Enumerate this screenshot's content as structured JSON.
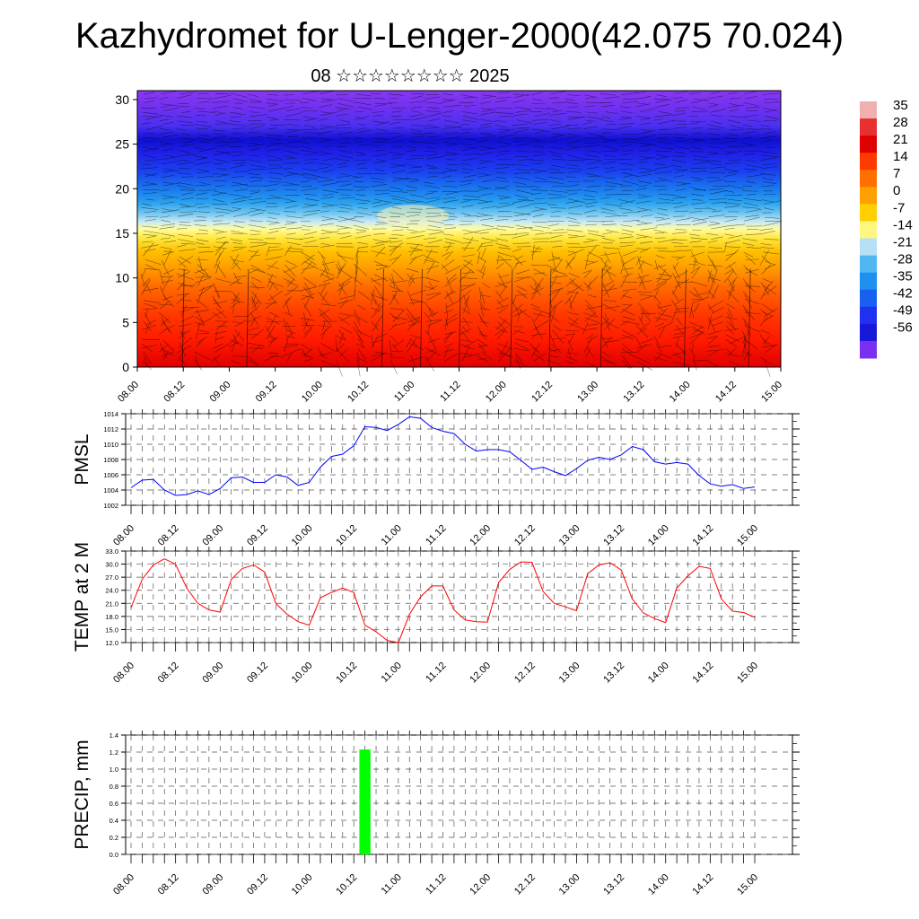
{
  "title": "Kazhydromet for U-Lenger-2000(42.075 70.024)",
  "subtitle": "08 ☆☆☆☆☆☆☆☆ 2025",
  "time_ticks": [
    "08.00",
    "08.12",
    "09.00",
    "09.12",
    "10.00",
    "10.12",
    "11.00",
    "11.12",
    "12.00",
    "12.12",
    "13.00",
    "13.12",
    "14.00",
    "14.12",
    "15.00"
  ],
  "colorbar": {
    "labels": [
      "35",
      "28",
      "21",
      "14",
      "7",
      "0",
      "-7",
      "-14",
      "-21",
      "-28",
      "-35",
      "-42",
      "-49",
      "-56"
    ]
  },
  "chart_data": [
    {
      "type": "heatmap",
      "name": "temperature-wind-cross-section",
      "title": "",
      "ylim": [
        0,
        31
      ],
      "y_ticks": [
        "0",
        "5",
        "10",
        "15",
        "20",
        "25",
        "30"
      ],
      "x_range": [
        "08.00",
        "15.00"
      ],
      "color_scale": {
        "min": -56,
        "max": 35,
        "unit_text": ""
      },
      "notes": "Temperature field: red near surface (~30), yellow around level 15 (~-7), blue ~20-25 (~-35 to -56), purple at top; overlaid wind streak lines"
    },
    {
      "type": "line",
      "name": "PMSL",
      "ylabel": "PMSL",
      "ylim": [
        1002,
        1014
      ],
      "y_ticks": [
        "1002",
        "1004",
        "1006",
        "1008",
        "1010",
        "1012",
        "1014"
      ],
      "x_step_hours": 3,
      "color": "#0000ff",
      "values": [
        1004.3,
        1005.3,
        1005.4,
        1004.0,
        1003.3,
        1003.4,
        1003.9,
        1003.4,
        1004.2,
        1005.6,
        1005.7,
        1005.0,
        1005.0,
        1006.0,
        1005.7,
        1004.6,
        1005.0,
        1007.0,
        1008.4,
        1008.7,
        1009.8,
        1012.3,
        1012.2,
        1011.8,
        1012.6,
        1013.6,
        1013.4,
        1012.2,
        1011.7,
        1011.4,
        1010.0,
        1009.1,
        1009.3,
        1009.3,
        1009.0,
        1007.9,
        1006.7,
        1007.0,
        1006.4,
        1005.9,
        1006.8,
        1007.9,
        1008.3,
        1008.0,
        1008.6,
        1009.7,
        1009.3,
        1007.7,
        1007.4,
        1007.6,
        1007.4,
        1005.9,
        1004.8,
        1004.5,
        1004.7,
        1004.2,
        1004.4
      ]
    },
    {
      "type": "line",
      "name": "TEMP at 2 M",
      "ylabel": "TEMP at 2 M",
      "ylim": [
        12.0,
        33.0
      ],
      "y_ticks": [
        "12.0",
        "15.0",
        "18.0",
        "21.0",
        "24.0",
        "27.0",
        "30.0",
        "33.0"
      ],
      "x_step_hours": 3,
      "color": "#ff0000",
      "values": [
        20.0,
        26.5,
        29.8,
        31.2,
        30.0,
        24.5,
        21.0,
        19.5,
        19.0,
        26.5,
        29.0,
        29.8,
        28.2,
        21.0,
        18.5,
        16.8,
        16.0,
        22.3,
        23.5,
        24.5,
        23.5,
        16.0,
        14.5,
        12.5,
        12.0,
        18.5,
        22.5,
        25.0,
        25.0,
        19.5,
        17.2,
        16.8,
        16.7,
        25.8,
        28.8,
        30.5,
        30.4,
        23.7,
        21.0,
        20.2,
        19.3,
        27.8,
        29.8,
        30.3,
        28.7,
        22.0,
        18.8,
        17.5,
        16.6,
        24.5,
        27.3,
        29.5,
        29.0,
        22.0,
        19.2,
        18.9,
        17.8
      ]
    },
    {
      "type": "bar",
      "name": "PRECIP, mm",
      "ylabel": "PRECIP, mm",
      "ylim": [
        0.0,
        1.4
      ],
      "y_ticks": [
        "0.0",
        "0.2",
        "0.4",
        "0.6",
        "0.8",
        "1.0",
        "1.2",
        "1.4"
      ],
      "color": "#00ff00",
      "bars": [
        {
          "x_hours": 63,
          "value": 1.23
        }
      ]
    }
  ]
}
